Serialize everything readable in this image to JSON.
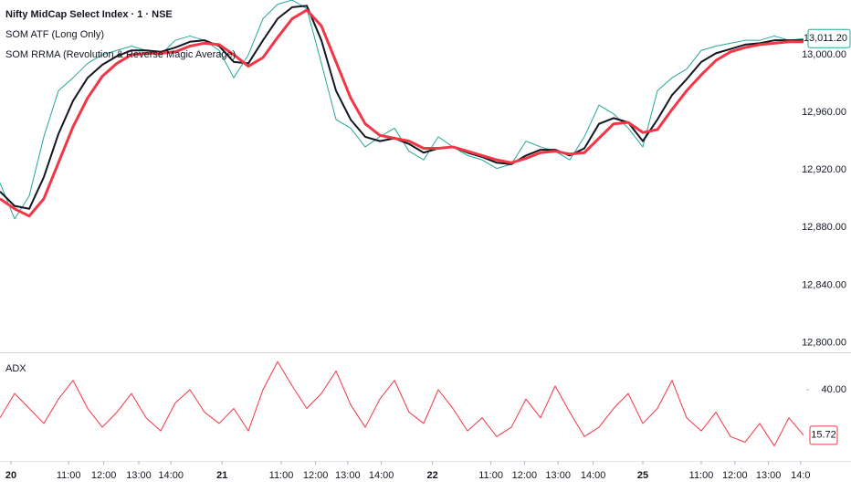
{
  "chart_data": [
    {
      "type": "line",
      "title": "Nifty MidCap Select Index · 1 · NSE",
      "xlim": [
        0,
        55
      ],
      "ylim": [
        12794,
        13038
      ],
      "yticks": [
        {
          "value": 12800,
          "label": "12,800.00"
        },
        {
          "value": 12840,
          "label": "12,840.00"
        },
        {
          "value": 12880,
          "label": "12,880.00"
        },
        {
          "value": 12920,
          "label": "12,920.00"
        },
        {
          "value": 12960,
          "label": "12,960.00"
        },
        {
          "value": 13000,
          "label": "13,000.00"
        }
      ],
      "last_value": {
        "value": 13011.2,
        "label": "13,011.20"
      },
      "series": [
        {
          "color": "#26a69a",
          "width": 1,
          "values": [
            12911,
            12886,
            12902,
            12943,
            12975,
            12984,
            12994,
            13000,
            13003,
            13006,
            13003,
            13000,
            13010,
            13013,
            13010,
            13003,
            12984,
            13000,
            13025,
            13035,
            13038,
            13032,
            12994,
            12955,
            12949,
            12936,
            12943,
            12949,
            12933,
            12927,
            12943,
            12936,
            12930,
            12927,
            12921,
            12924,
            12940,
            12936,
            12933,
            12927,
            12943,
            12965,
            12959,
            12949,
            12936,
            12975,
            12984,
            12990,
            13003,
            13006,
            13008,
            13010,
            13010,
            13013,
            13010,
            13011.2
          ]
        },
        {
          "name": "SOM ATF (Long Only)",
          "color": "#131722",
          "width": 2,
          "values": [
            12905,
            12895,
            12893,
            12915,
            12945,
            12968,
            12984,
            12993,
            12999,
            13003,
            13003,
            13002,
            13005,
            13009,
            13010,
            13006,
            12995,
            12994,
            13010,
            13025,
            13033,
            13034,
            13010,
            12975,
            12955,
            12943,
            12940,
            12942,
            12938,
            12932,
            12935,
            12936,
            12932,
            12929,
            12925,
            12924,
            12930,
            12934,
            12934,
            12930,
            12935,
            12952,
            12956,
            12953,
            12940,
            12955,
            12972,
            12983,
            12995,
            13001,
            13004,
            13007,
            13008,
            13010,
            13010,
            13010
          ]
        },
        {
          "name": "SOM RRMA (Revolution & Reverse Magic Average)",
          "color": "#f23645",
          "width": 3,
          "values": [
            12900,
            12893,
            12888,
            12900,
            12925,
            12950,
            12970,
            12985,
            12994,
            13000,
            13001,
            13001,
            13002,
            13006,
            13008,
            13007,
            13000,
            12992,
            12998,
            13012,
            13025,
            13031,
            13020,
            12995,
            12970,
            12952,
            12944,
            12942,
            12940,
            12935,
            12935,
            12936,
            12933,
            12930,
            12927,
            12925,
            12928,
            12932,
            12933,
            12931,
            12932,
            12942,
            12952,
            12953,
            12946,
            12948,
            12962,
            12975,
            12986,
            12996,
            13002,
            13005,
            13007,
            13008,
            13009,
            13009
          ]
        }
      ]
    },
    {
      "type": "line",
      "title": "ADX",
      "xlim": [
        0,
        55
      ],
      "ylim": [
        2,
        59
      ],
      "yticks": [
        {
          "value": 40,
          "label": "40.00"
        }
      ],
      "xticks": [
        {
          "value": 0.75,
          "label": "20"
        },
        {
          "value": 4.7,
          "label": "11:00"
        },
        {
          "value": 7.1,
          "label": "12:00"
        },
        {
          "value": 9.5,
          "label": "13:00"
        },
        {
          "value": 11.7,
          "label": "14:00"
        },
        {
          "value": 15.2,
          "label": "21"
        },
        {
          "value": 19.25,
          "label": "11:00"
        },
        {
          "value": 21.6,
          "label": "12:00"
        },
        {
          "value": 23.8,
          "label": "13:00"
        },
        {
          "value": 26.1,
          "label": "14:00"
        },
        {
          "value": 29.6,
          "label": "22"
        },
        {
          "value": 33.6,
          "label": "11:00"
        },
        {
          "value": 35.9,
          "label": "12:00"
        },
        {
          "value": 38.2,
          "label": "13:00"
        },
        {
          "value": 40.6,
          "label": "14:00"
        },
        {
          "value": 44,
          "label": "25"
        },
        {
          "value": 48,
          "label": "11:00"
        },
        {
          "value": 50.3,
          "label": "12:00"
        },
        {
          "value": 52.6,
          "label": "13:00"
        },
        {
          "value": 54.8,
          "label": "14:0"
        }
      ],
      "series": [
        {
          "color": "#f23645",
          "width": 1,
          "values": [
            25,
            38,
            30,
            22,
            35,
            45,
            30,
            20,
            28,
            38,
            25,
            18,
            33,
            40,
            28,
            22,
            30,
            18,
            40,
            55,
            42,
            30,
            38,
            50,
            32,
            20,
            35,
            45,
            28,
            22,
            40,
            30,
            18,
            25,
            15,
            20,
            35,
            25,
            42,
            28,
            15,
            20,
            30,
            38,
            22,
            30,
            45,
            25,
            18,
            28,
            15,
            12,
            22,
            10,
            25,
            15.72
          ]
        }
      ]
    }
  ]
}
